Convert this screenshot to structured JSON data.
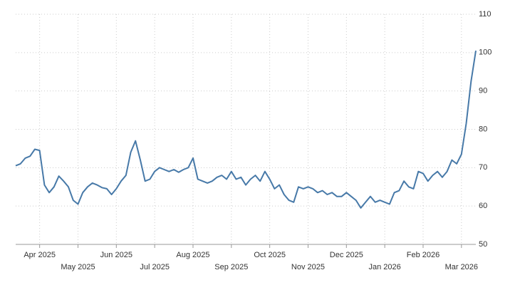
{
  "chart_data": {
    "type": "line",
    "categories": [
      null,
      null,
      null,
      null,
      null,
      "Apr 2025",
      null,
      null,
      null,
      null,
      null,
      null,
      null,
      "May 2025",
      null,
      null,
      null,
      null,
      null,
      null,
      null,
      "Jun 2025",
      null,
      null,
      null,
      null,
      null,
      null,
      null,
      "Jul 2025",
      null,
      null,
      null,
      null,
      null,
      null,
      null,
      "Aug 2025",
      null,
      null,
      null,
      null,
      null,
      null,
      null,
      "Sep 2025",
      null,
      null,
      null,
      null,
      null,
      null,
      null,
      "Oct 2025",
      null,
      null,
      null,
      null,
      null,
      null,
      null,
      "Nov 2025",
      null,
      null,
      null,
      null,
      null,
      null,
      null,
      "Dec 2025",
      null,
      null,
      null,
      null,
      null,
      null,
      null,
      "Jan 2026",
      null,
      null,
      null,
      null,
      null,
      null,
      null,
      "Feb 2026",
      null,
      null,
      null,
      null,
      null,
      null,
      null,
      "Mar 2026",
      null,
      null,
      null
    ],
    "series": [
      {
        "color": "#4779a8",
        "values": [
          70.5,
          71,
          72.5,
          73,
          74.8,
          74.5,
          65.5,
          63.5,
          65,
          67.8,
          66.5,
          65,
          61.5,
          60.5,
          63.5,
          65,
          66,
          65.5,
          64.8,
          64.5,
          63,
          64.5,
          66.5,
          68,
          74,
          77,
          72,
          66.5,
          67,
          69,
          70,
          69.5,
          69,
          69.5,
          68.8,
          69.5,
          70,
          72.5,
          67,
          66.5,
          66,
          66.5,
          67.5,
          68,
          67,
          69,
          67,
          67.5,
          65.5,
          67,
          68,
          66.5,
          69,
          67,
          64.5,
          65.5,
          63,
          61.5,
          61,
          65,
          64.5,
          65,
          64.5,
          63.5,
          64,
          63,
          63.5,
          62.5,
          62.5,
          63.5,
          62.5,
          61.5,
          59.5,
          61,
          62.5,
          61,
          61.5,
          61,
          60.5,
          63.5,
          64,
          66.5,
          65,
          64.5,
          69,
          68.5,
          66.5,
          68,
          69,
          67.5,
          69,
          72,
          71,
          73.5,
          81.5,
          92.5,
          100.5
        ]
      }
    ],
    "ylim": [
      50,
      110
    ],
    "yticks": [
      50,
      60,
      70,
      80,
      90,
      100,
      110
    ],
    "grid": true
  }
}
